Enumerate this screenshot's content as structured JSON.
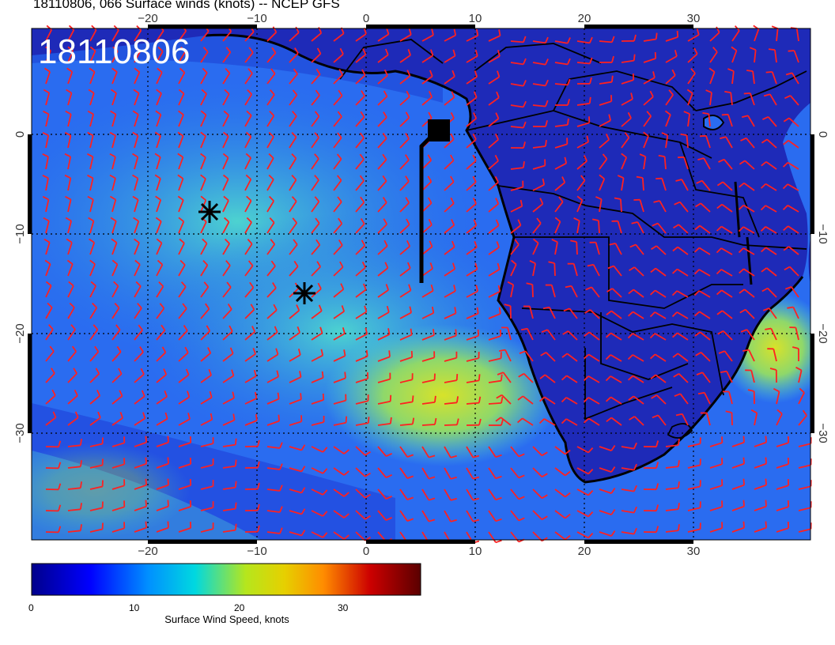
{
  "title": "18110806, 066 Surface winds (knots) -- NCEP GFS",
  "stamp": "18110806",
  "colorbar": {
    "label": "Surface Wind Speed, knots",
    "ticks": [
      "0",
      "10",
      "20",
      "30"
    ],
    "colors": [
      "#00008b",
      "#0000ff",
      "#00bfff",
      "#00e5cc",
      "#b5e61d",
      "#e6e600",
      "#ff8c00",
      "#cc0000",
      "#6b0000"
    ]
  },
  "axes": {
    "lon_ticks": [
      "−20",
      "−10",
      "0",
      "10",
      "20",
      "30"
    ],
    "lat_ticks": [
      "0",
      "−10",
      "−20",
      "−30"
    ]
  },
  "map_colors": {
    "ocean_base": "#2a6cf0",
    "land_base": "#1e2ab8",
    "barb": "#ff2020",
    "coast": "#000000"
  },
  "markers": [
    {
      "type": "asterisk",
      "name": "marker-1"
    },
    {
      "type": "asterisk",
      "name": "marker-2"
    },
    {
      "type": "square",
      "name": "marker-3"
    }
  ]
}
